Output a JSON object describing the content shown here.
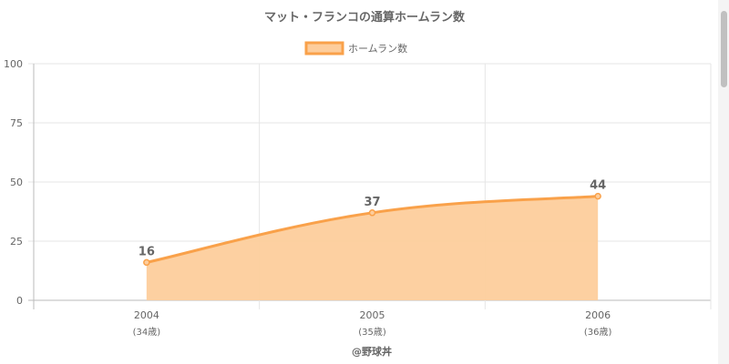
{
  "chart_data": {
    "type": "area",
    "title": "マット・フランコの通算ホームラン数",
    "categories": [
      "2004",
      "2005",
      "2006"
    ],
    "category_sublabels": [
      "(34歳)",
      "(35歳)",
      "(36歳)"
    ],
    "series": [
      {
        "name": "ホームラン数",
        "values": [
          16,
          37,
          44
        ]
      }
    ],
    "ylim": [
      0,
      100
    ],
    "yticks": [
      0,
      25,
      50,
      75,
      100
    ],
    "grid": true,
    "legend_position": "top",
    "line_color": "#f9a14a",
    "fill_color": "#fdcd9c",
    "credit": "@野球丼"
  }
}
